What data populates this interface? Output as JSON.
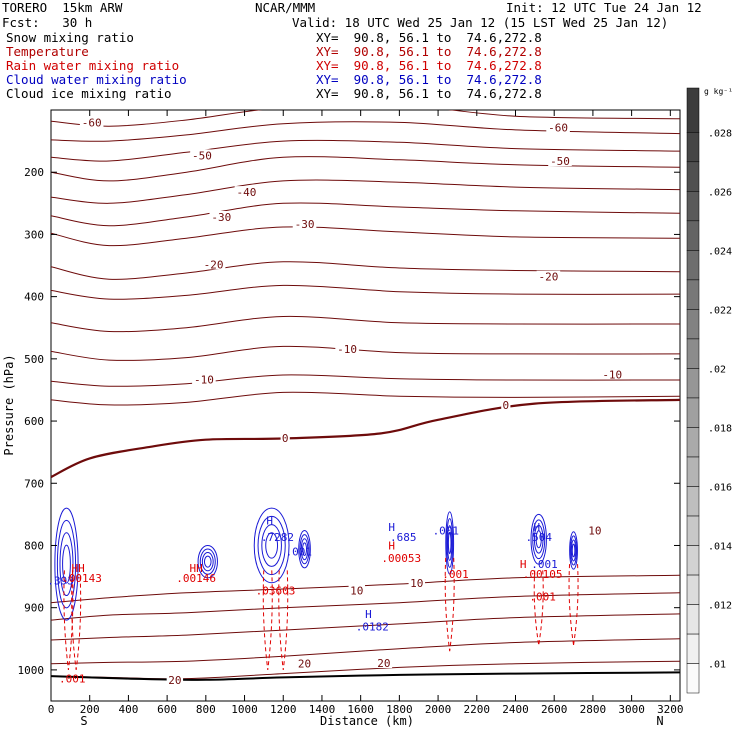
{
  "header": {
    "model": "TORERO  15km ARW",
    "org": "NCAR/MMM",
    "init": "Init: 12 UTC Tue 24 Jan 12",
    "fcst": "Fcst:   30 h",
    "valid": "Valid: 18 UTC Wed 25 Jan 12 (15 LST Wed 25 Jan 12)"
  },
  "fields": [
    {
      "name": "Snow mixing ratio",
      "xy": "XY=  90.8, 56.1 to  74.6,272.8",
      "color": "#000000"
    },
    {
      "name": "Temperature",
      "xy": "XY=  90.8, 56.1 to  74.6,272.8",
      "color": "#b00000"
    },
    {
      "name": "Rain water mixing ratio",
      "xy": "XY=  90.8, 56.1 to  74.6,272.8",
      "color": "#d00000"
    },
    {
      "name": "Cloud water mixing ratio",
      "xy": "XY=  90.8, 56.1 to  74.6,272.8",
      "color": "#0000c0"
    },
    {
      "name": "Cloud ice mixing ratio",
      "xy": "XY=  90.8, 56.1 to  74.6,272.8",
      "color": "#000000"
    }
  ],
  "chart_data": {
    "type": "cross-section contour",
    "xlabel": "Distance (km)",
    "ylabel": "Pressure (hPa)",
    "xlim": [
      0,
      3250
    ],
    "ylim": [
      100,
      1050
    ],
    "y_reversed": true,
    "x_ticks": [
      "0",
      "200",
      "400",
      "600",
      "800",
      "1000",
      "1200",
      "1400",
      "1600",
      "1800",
      "2000",
      "2200",
      "2400",
      "2600",
      "2800",
      "3000",
      "3200"
    ],
    "y_ticks": [
      "200",
      "300",
      "400",
      "500",
      "600",
      "700",
      "800",
      "900",
      "1000"
    ],
    "x_end_labels": {
      "left": "S",
      "right": "N"
    },
    "temperature_color": "#6e0b0b",
    "temperature_contours": [
      {
        "label": "-60",
        "points": [
          [
            0,
            118
          ],
          [
            300,
            126
          ],
          [
            700,
            116
          ],
          [
            1200,
            96
          ],
          [
            1800,
            92
          ],
          [
            2400,
            110
          ],
          [
            3250,
            114
          ]
        ]
      },
      {
        "label": "-60",
        "points": [
          [
            0,
            148
          ],
          [
            300,
            150
          ],
          [
            700,
            140
          ],
          [
            1200,
            122
          ],
          [
            1800,
            120
          ],
          [
            2400,
            132
          ],
          [
            3250,
            138
          ]
        ]
      },
      {
        "label": "-50",
        "points": [
          [
            0,
            176
          ],
          [
            300,
            182
          ],
          [
            700,
            168
          ],
          [
            1200,
            150
          ],
          [
            1800,
            152
          ],
          [
            2400,
            162
          ],
          [
            3250,
            166
          ]
        ]
      },
      {
        "label": "-50",
        "points": [
          [
            0,
            200
          ],
          [
            300,
            214
          ],
          [
            700,
            200
          ],
          [
            1200,
            176
          ],
          [
            1800,
            180
          ],
          [
            2400,
            188
          ],
          [
            3250,
            192
          ]
        ]
      },
      {
        "label": "-40",
        "points": [
          [
            0,
            240
          ],
          [
            300,
            250
          ],
          [
            700,
            236
          ],
          [
            1200,
            214
          ],
          [
            1800,
            216
          ],
          [
            2400,
            224
          ],
          [
            3250,
            228
          ]
        ]
      },
      {
        "label": "-30",
        "points": [
          [
            0,
            270
          ],
          [
            300,
            286
          ],
          [
            700,
            272
          ],
          [
            1200,
            250
          ],
          [
            1800,
            256
          ],
          [
            2400,
            262
          ],
          [
            3250,
            266
          ]
        ]
      },
      {
        "label": "-30",
        "points": [
          [
            0,
            298
          ],
          [
            300,
            318
          ],
          [
            700,
            306
          ],
          [
            1200,
            288
          ],
          [
            1800,
            296
          ],
          [
            2400,
            304
          ],
          [
            3250,
            306
          ]
        ]
      },
      {
        "label": "-20",
        "points": [
          [
            0,
            352
          ],
          [
            300,
            372
          ],
          [
            700,
            362
          ],
          [
            1200,
            344
          ],
          [
            1800,
            354
          ],
          [
            2400,
            358
          ],
          [
            3250,
            360
          ]
        ]
      },
      {
        "label": "-20",
        "points": [
          [
            0,
            390
          ],
          [
            300,
            404
          ],
          [
            700,
            398
          ],
          [
            1200,
            382
          ],
          [
            1800,
            392
          ],
          [
            2400,
            396
          ],
          [
            3250,
            396
          ]
        ]
      },
      {
        "label": "-10",
        "points": [
          [
            0,
            442
          ],
          [
            300,
            456
          ],
          [
            700,
            450
          ],
          [
            1200,
            432
          ],
          [
            1800,
            442
          ],
          [
            2400,
            444
          ],
          [
            3250,
            444
          ]
        ]
      },
      {
        "label": "-10",
        "points": [
          [
            0,
            488
          ],
          [
            300,
            502
          ],
          [
            700,
            498
          ],
          [
            1200,
            480
          ],
          [
            1800,
            490
          ],
          [
            2400,
            492
          ],
          [
            3250,
            492
          ]
        ]
      },
      {
        "label": "-10",
        "points": [
          [
            0,
            536
          ],
          [
            300,
            544
          ],
          [
            700,
            540
          ],
          [
            1200,
            526
          ],
          [
            1800,
            532
          ],
          [
            2400,
            534
          ],
          [
            3250,
            534
          ]
        ]
      },
      {
        "label": "0",
        "points": [
          [
            0,
            566
          ],
          [
            300,
            574
          ],
          [
            700,
            570
          ],
          [
            1200,
            554
          ],
          [
            1800,
            560
          ],
          [
            2400,
            562
          ],
          [
            3250,
            560
          ]
        ]
      },
      {
        "label": "0",
        "points": [
          [
            0,
            690
          ],
          [
            200,
            660
          ],
          [
            500,
            642
          ],
          [
            800,
            630
          ],
          [
            1200,
            628
          ],
          [
            1700,
            620
          ],
          [
            2000,
            598
          ],
          [
            2500,
            572
          ],
          [
            3250,
            566
          ]
        ]
      },
      {
        "label": "10",
        "points": [
          [
            0,
            892
          ],
          [
            300,
            884
          ],
          [
            700,
            876
          ],
          [
            1200,
            870
          ],
          [
            1800,
            862
          ],
          [
            2400,
            852
          ],
          [
            3250,
            848
          ]
        ]
      },
      {
        "label": "10",
        "points": [
          [
            0,
            920
          ],
          [
            300,
            912
          ],
          [
            700,
            908
          ],
          [
            1200,
            900
          ],
          [
            1800,
            892
          ],
          [
            2400,
            882
          ],
          [
            3250,
            876
          ]
        ]
      },
      {
        "label": "10",
        "points": [
          [
            0,
            952
          ],
          [
            300,
            948
          ],
          [
            700,
            944
          ],
          [
            1200,
            936
          ],
          [
            1800,
            926
          ],
          [
            2400,
            916
          ],
          [
            3250,
            910
          ]
        ]
      },
      {
        "label": "20",
        "points": [
          [
            0,
            990
          ],
          [
            300,
            988
          ],
          [
            700,
            986
          ],
          [
            1200,
            978
          ],
          [
            1800,
            966
          ],
          [
            2400,
            956
          ],
          [
            3250,
            950
          ]
        ]
      },
      {
        "label": "20",
        "points": [
          [
            0,
            1010
          ],
          [
            300,
            1012
          ],
          [
            700,
            1014
          ],
          [
            1200,
            1006
          ],
          [
            1800,
            996
          ],
          [
            2400,
            990
          ],
          [
            3250,
            986
          ]
        ]
      }
    ],
    "temperature_labels": [
      {
        "text": "-60",
        "x": 210,
        "y": 120
      },
      {
        "text": "-60",
        "x": 2620,
        "y": 128
      },
      {
        "text": "-50",
        "x": 780,
        "y": 173
      },
      {
        "text": "-50",
        "x": 2630,
        "y": 182
      },
      {
        "text": "-40",
        "x": 1010,
        "y": 232
      },
      {
        "text": "-30",
        "x": 880,
        "y": 272
      },
      {
        "text": "-30",
        "x": 1310,
        "y": 283
      },
      {
        "text": "-20",
        "x": 840,
        "y": 348
      },
      {
        "text": "-20",
        "x": 2570,
        "y": 368
      },
      {
        "text": "-10",
        "x": 1530,
        "y": 484
      },
      {
        "text": "-10",
        "x": 2900,
        "y": 525
      },
      {
        "text": "-10",
        "x": 790,
        "y": 533
      },
      {
        "text": "0",
        "x": 1210,
        "y": 627
      },
      {
        "text": "0",
        "x": 2350,
        "y": 574
      },
      {
        "text": "10",
        "x": 1890,
        "y": 860
      },
      {
        "text": "10",
        "x": 1580,
        "y": 872
      },
      {
        "text": "20",
        "x": 1310,
        "y": 990
      },
      {
        "text": "20",
        "x": 1720,
        "y": 989
      },
      {
        "text": "20",
        "x": 640,
        "y": 1016
      }
    ],
    "surface_pressure": [
      [
        0,
        1010
      ],
      [
        400,
        1014
      ],
      [
        800,
        1016
      ],
      [
        1200,
        1012
      ],
      [
        1800,
        1008
      ],
      [
        2400,
        1006
      ],
      [
        3250,
        1004
      ]
    ],
    "cloud_water_color": "#1a1ad6",
    "cloud_water_clusters": [
      {
        "x": 80,
        "p": 830,
        "rx": 60,
        "rp": 90
      },
      {
        "x": 1140,
        "p": 800,
        "rx": 90,
        "rp": 60
      },
      {
        "x": 1310,
        "p": 806,
        "rx": 30,
        "rp": 30
      },
      {
        "x": 2060,
        "p": 796,
        "rx": 20,
        "rp": 50
      },
      {
        "x": 2520,
        "p": 790,
        "rx": 40,
        "rp": 40
      },
      {
        "x": 2700,
        "p": 808,
        "rx": 20,
        "rp": 30
      },
      {
        "x": 810,
        "p": 826,
        "rx": 50,
        "rp": 26
      }
    ],
    "rain_color": "#e00000",
    "rain_streaks": [
      [
        90,
        840,
        1000
      ],
      [
        130,
        850,
        1000
      ],
      [
        1120,
        840,
        1000
      ],
      [
        1200,
        840,
        1000
      ],
      [
        2060,
        820,
        970
      ],
      [
        2520,
        840,
        960
      ],
      [
        2700,
        830,
        960
      ]
    ],
    "point_labels": [
      {
        "text": "H",
        "x": 1130,
        "p": 760,
        "color": "#1a1ad6"
      },
      {
        "text": ".7282",
        "x": 1170,
        "p": 786,
        "color": "#1a1ad6"
      },
      {
        "text": "H",
        "x": 1760,
        "p": 770,
        "color": "#1a1ad6"
      },
      {
        "text": ".685",
        "x": 1820,
        "p": 786,
        "color": "#1a1ad6"
      },
      {
        "text": ".001",
        "x": 2040,
        "p": 776,
        "color": "#1a1ad6"
      },
      {
        "text": "H",
        "x": 2510,
        "p": 770,
        "color": "#1a1ad6"
      },
      {
        "text": ".504",
        "x": 2520,
        "p": 786,
        "color": "#1a1ad6"
      },
      {
        "text": ".393",
        "x": 50,
        "p": 856,
        "color": "#1a1ad6"
      },
      {
        "text": "H",
        "x": 1640,
        "p": 910,
        "color": "#1a1ad6"
      },
      {
        "text": ".0182",
        "x": 1660,
        "p": 930,
        "color": "#1a1ad6"
      },
      {
        "text": ".001",
        "x": 1280,
        "p": 810,
        "color": "#1a1ad6"
      },
      {
        "text": "H",
        "x": 1760,
        "p": 800,
        "color": "#e00000"
      },
      {
        "text": ".00053",
        "x": 1810,
        "p": 820,
        "color": "#e00000"
      },
      {
        "text": "H",
        "x": 2440,
        "p": 830,
        "color": "#e00000"
      },
      {
        "text": ".00105",
        "x": 2540,
        "p": 846,
        "color": "#e00000"
      },
      {
        "text": ".001",
        "x": 2550,
        "p": 830,
        "color": "#1a1ad6"
      },
      {
        "text": ".001",
        "x": 2540,
        "p": 882,
        "color": "#e00000"
      },
      {
        "text": ".001",
        "x": 2090,
        "p": 846,
        "color": "#e00000"
      },
      {
        "text": ".03603",
        "x": 1160,
        "p": 872,
        "color": "#e00000"
      },
      {
        "text": "HH",
        "x": 140,
        "p": 836,
        "color": "#e00000"
      },
      {
        "text": ".00143",
        "x": 160,
        "p": 852,
        "color": "#e00000"
      },
      {
        "text": "HH",
        "x": 750,
        "p": 836,
        "color": "#e00000"
      },
      {
        "text": ".00146",
        "x": 750,
        "p": 852,
        "color": "#e00000"
      },
      {
        "text": ".001",
        "x": 110,
        "p": 1014,
        "color": "#e00000"
      },
      {
        "text": "10",
        "x": 2810,
        "p": 776,
        "color": "#6e0b0b"
      }
    ],
    "colorbar": {
      "unit": "g kg⁻¹",
      "ticks": [
        ".01",
        ".012",
        ".014",
        ".016",
        ".018",
        ".02",
        ".022",
        ".024",
        ".026",
        ".028"
      ],
      "range": [
        0.009,
        0.0295
      ]
    }
  }
}
